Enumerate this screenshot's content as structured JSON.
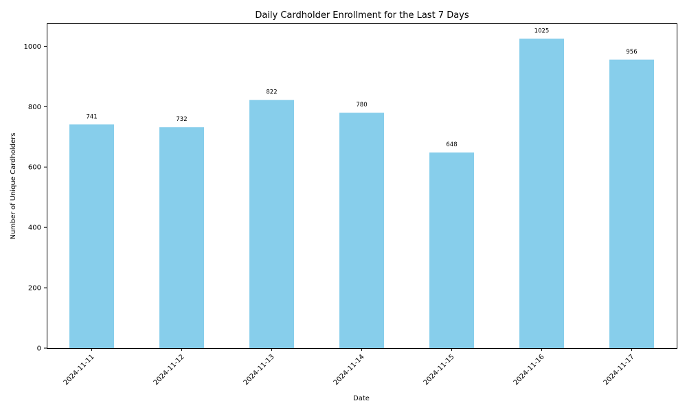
{
  "chart_data": {
    "type": "bar",
    "title": "Daily Cardholder Enrollment for the Last 7 Days",
    "xlabel": "Date",
    "ylabel": "Number of Unique Cardholders",
    "categories": [
      "2024-11-11",
      "2024-11-12",
      "2024-11-13",
      "2024-11-14",
      "2024-11-15",
      "2024-11-16",
      "2024-11-17"
    ],
    "values": [
      741,
      732,
      822,
      780,
      648,
      1025,
      956
    ],
    "data_labels": [
      "741",
      "732",
      "822",
      "780",
      "648",
      "1025",
      "956"
    ],
    "ylim": [
      0,
      1076
    ],
    "yticks": [
      0,
      200,
      400,
      600,
      800,
      1000
    ],
    "ytick_labels": [
      "0",
      "200",
      "400",
      "600",
      "800",
      "1000"
    ],
    "bar_color": "#87ceeb",
    "grid": false,
    "legend": "none"
  }
}
